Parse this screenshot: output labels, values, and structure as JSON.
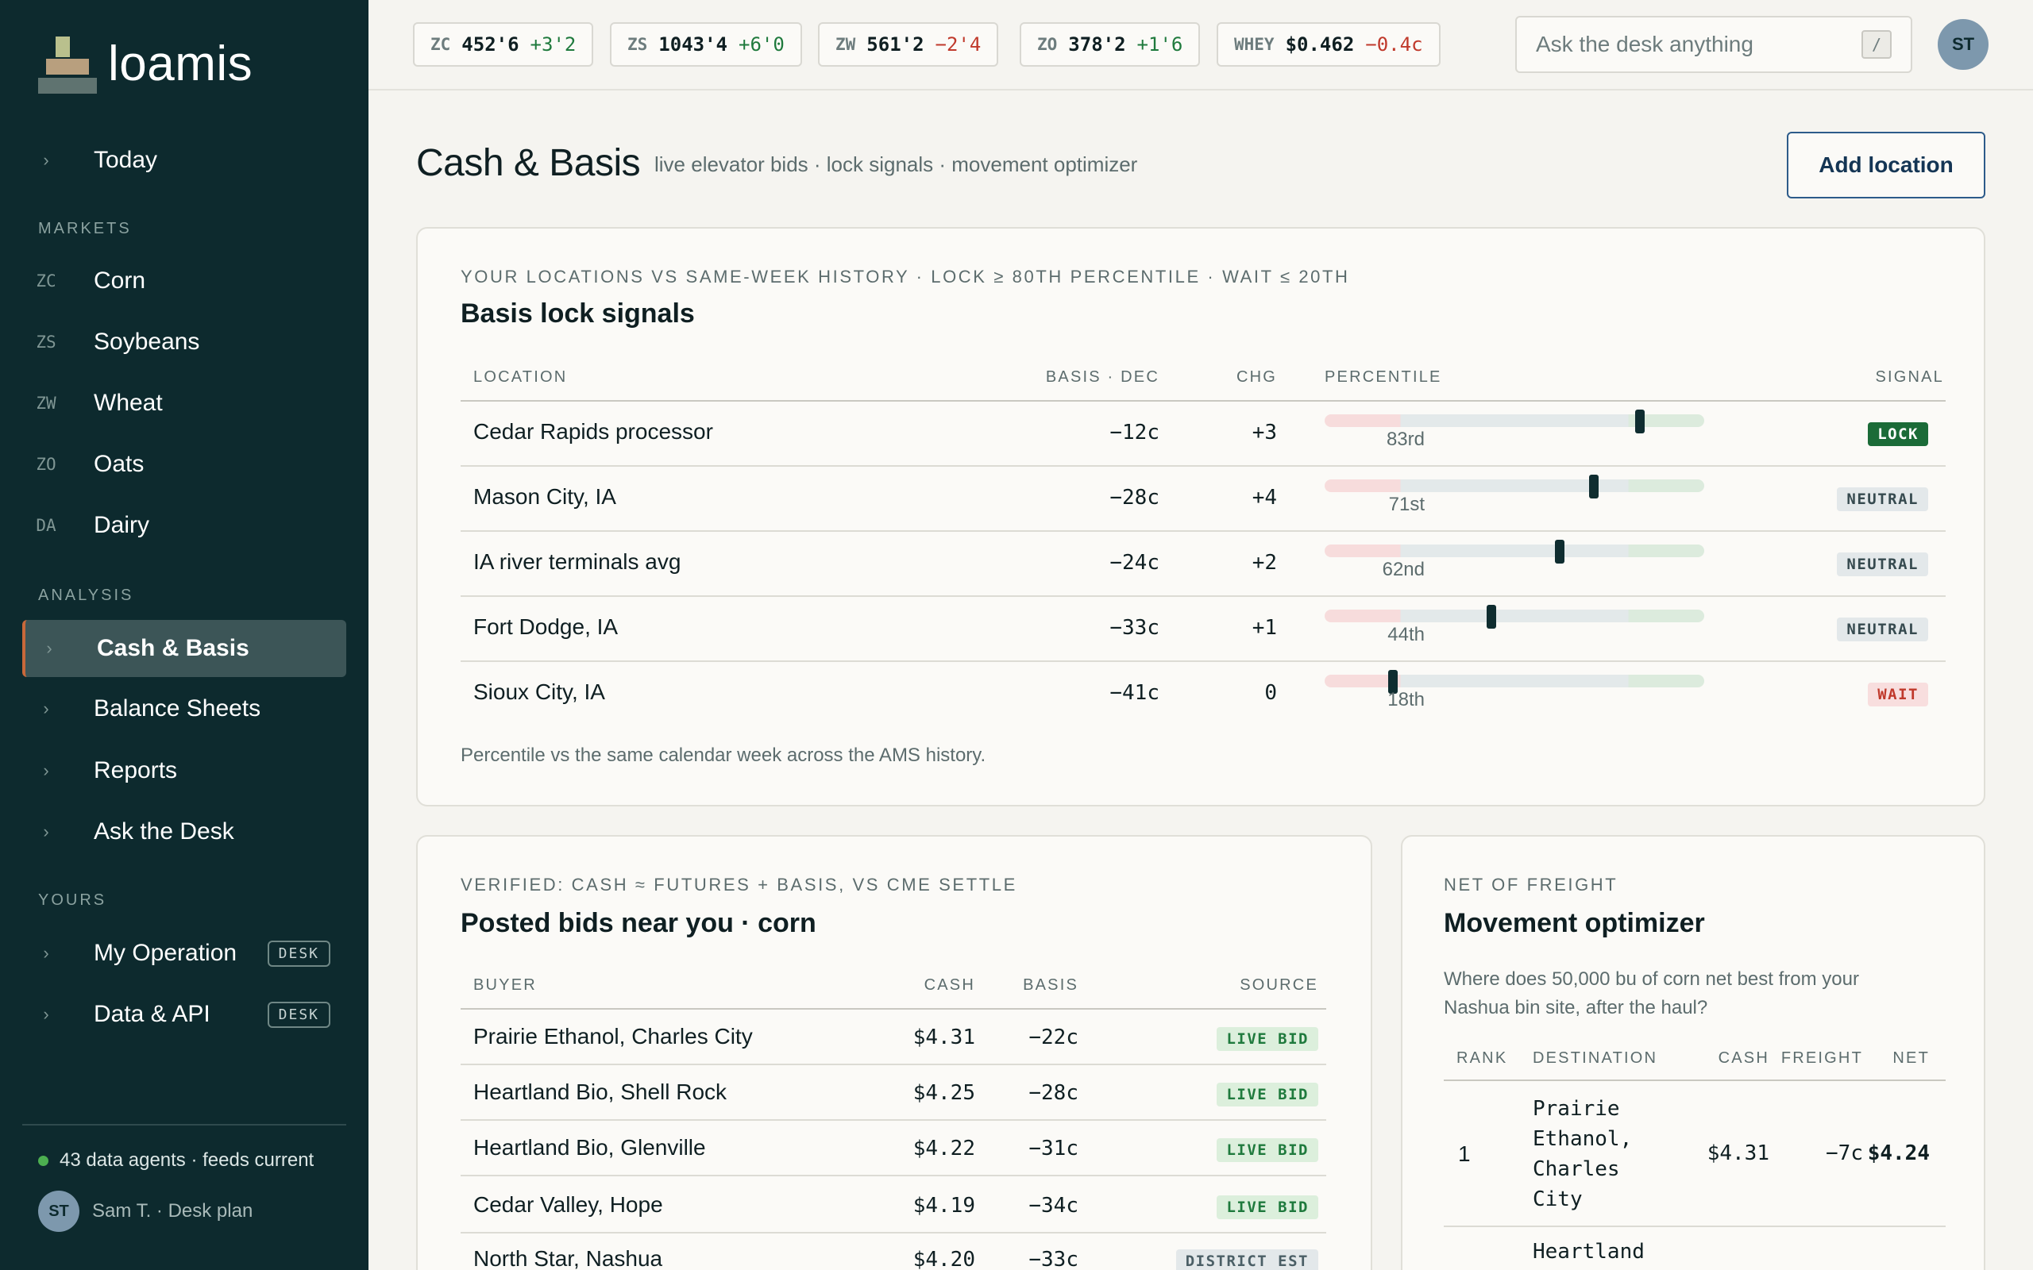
{
  "brand": {
    "name": "loamis"
  },
  "sidebar": {
    "today": {
      "label": "Today",
      "chevron": "›"
    },
    "markets_title": "MARKETS",
    "markets": [
      {
        "code": "ZC",
        "label": "Corn"
      },
      {
        "code": "ZS",
        "label": "Soybeans"
      },
      {
        "code": "ZW",
        "label": "Wheat"
      },
      {
        "code": "ZO",
        "label": "Oats"
      },
      {
        "code": "DA",
        "label": "Dairy"
      }
    ],
    "analysis_title": "ANALYSIS",
    "analysis": [
      {
        "label": "Cash & Basis",
        "chevron": "›",
        "active": true
      },
      {
        "label": "Balance Sheets",
        "chevron": "›"
      },
      {
        "label": "Reports",
        "chevron": "›"
      },
      {
        "label": "Ask the Desk",
        "chevron": "›"
      }
    ],
    "yours_title": "YOURS",
    "yours": [
      {
        "label": "My Operation",
        "chevron": "›",
        "pill": "DESK"
      },
      {
        "label": "Data & API",
        "chevron": "›",
        "pill": "DESK"
      }
    ],
    "status": "43 data agents · feeds current",
    "status_color": "#4caf50",
    "user": {
      "initials": "ST",
      "label": "Sam T. · Desk plan"
    }
  },
  "tickers": [
    {
      "sym": "ZC",
      "price": "452'6",
      "chg": "+3'2",
      "dir": "up"
    },
    {
      "sym": "ZS",
      "price": "1043'4",
      "chg": "+6'0",
      "dir": "up"
    },
    {
      "sym": "ZW",
      "price": "561'2",
      "chg": "−2'4",
      "dir": "down"
    },
    {
      "sym": "ZO",
      "price": "378'2",
      "chg": "+1'6",
      "dir": "up"
    },
    {
      "sym": "WHEY",
      "price": "$0.462",
      "chg": "−0.4c",
      "dir": "down"
    }
  ],
  "search": {
    "placeholder": "Ask the desk anything",
    "shortcut": "/"
  },
  "user_avatar": "ST",
  "page": {
    "title": "Cash & Basis",
    "subtitle": "live elevator bids · lock signals · movement optimizer",
    "add_button": "Add location"
  },
  "lock_signals": {
    "eyebrow": "YOUR LOCATIONS VS SAME-WEEK HISTORY · LOCK ≥ 80TH PERCENTILE · WAIT ≤ 20TH",
    "title": "Basis lock signals",
    "columns": {
      "location": "LOCATION",
      "basis": "BASIS · DEC",
      "chg": "CHG",
      "percentile": "PERCENTILE",
      "signal": "SIGNAL"
    },
    "rows": [
      {
        "location": "Cedar Rapids processor",
        "basis": "−12c",
        "chg": "+3",
        "chg_dir": "up",
        "percentile": 83,
        "pct_label": "83rd",
        "signal": "LOCK",
        "signal_kind": "lock"
      },
      {
        "location": "Mason City, IA",
        "basis": "−28c",
        "chg": "+4",
        "chg_dir": "up",
        "percentile": 71,
        "pct_label": "71st",
        "signal": "NEUTRAL",
        "signal_kind": "neutral"
      },
      {
        "location": "IA river terminals avg",
        "basis": "−24c",
        "chg": "+2",
        "chg_dir": "up",
        "percentile": 62,
        "pct_label": "62nd",
        "signal": "NEUTRAL",
        "signal_kind": "neutral"
      },
      {
        "location": "Fort Dodge, IA",
        "basis": "−33c",
        "chg": "+1",
        "chg_dir": "up",
        "percentile": 44,
        "pct_label": "44th",
        "signal": "NEUTRAL",
        "signal_kind": "neutral"
      },
      {
        "location": "Sioux City, IA",
        "basis": "−41c",
        "chg": "0",
        "chg_dir": "flat",
        "percentile": 18,
        "pct_label": "18th",
        "signal": "WAIT",
        "signal_kind": "wait"
      }
    ],
    "footnote": "Percentile vs the same calendar week across the AMS history."
  },
  "posted_bids": {
    "eyebrow": "VERIFIED: CASH ≈ FUTURES + BASIS, VS CME SETTLE",
    "title": "Posted bids near you · corn",
    "columns": {
      "buyer": "BUYER",
      "cash": "CASH",
      "basis": "BASIS",
      "source": "SOURCE"
    },
    "rows": [
      {
        "buyer": "Prairie Ethanol, Charles City",
        "cash": "$4.31",
        "basis": "−22c",
        "source": "LIVE BID",
        "source_kind": "live"
      },
      {
        "buyer": "Heartland Bio, Shell Rock",
        "cash": "$4.25",
        "basis": "−28c",
        "source": "LIVE BID",
        "source_kind": "live"
      },
      {
        "buyer": "Heartland Bio, Glenville",
        "cash": "$4.22",
        "basis": "−31c",
        "source": "LIVE BID",
        "source_kind": "live"
      },
      {
        "buyer": "Cedar Valley, Hope",
        "cash": "$4.19",
        "basis": "−34c",
        "source": "LIVE BID",
        "source_kind": "live"
      },
      {
        "buyer": "North Star, Nashua",
        "cash": "$4.20",
        "basis": "−33c",
        "source": "DISTRICT EST",
        "source_kind": "district"
      }
    ]
  },
  "optimizer": {
    "eyebrow": "NET OF FREIGHT",
    "title": "Movement optimizer",
    "description": "Where does 50,000 bu of corn net best from your Nashua bin site, after the haul?",
    "columns": {
      "rank": "RANK",
      "destination": "DESTINATION",
      "cash": "CASH",
      "freight": "FREIGHT",
      "net": "NET"
    },
    "rows": [
      {
        "rank": "1",
        "destination": [
          "Prairie",
          "Ethanol,",
          "Charles",
          "City"
        ],
        "cash": "$4.31",
        "freight": "−7c",
        "net": "$4.24"
      },
      {
        "rank": "",
        "destination": [
          "Heartland"
        ],
        "cash": "",
        "freight": "",
        "net": ""
      }
    ]
  },
  "colors": {
    "accent_active": "#c8683a",
    "sidebar_bg": "#0d2a2e",
    "up": "#1f7a3d",
    "down": "#c0392b"
  }
}
